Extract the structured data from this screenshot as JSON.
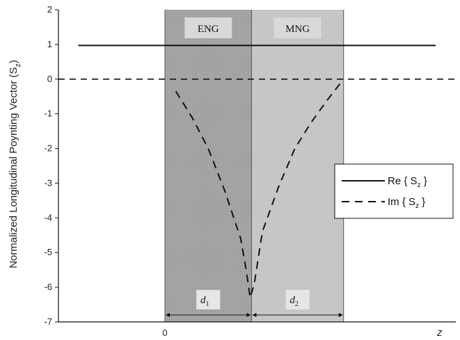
{
  "chart_data": {
    "type": "line",
    "title": "",
    "xlabel": "z",
    "ylabel": "Normalized Longitudinal Poynting Vector (S",
    "ylabel_sub": "z",
    "ylabel_close": ")",
    "ylim": [
      -7,
      2
    ],
    "yticks": [
      2,
      1,
      0,
      -1,
      -2,
      -3,
      -4,
      -5,
      -6,
      -7
    ],
    "xlim": [
      -0.32,
      1.0
    ],
    "xticks": [
      {
        "value": 0,
        "label": "0"
      }
    ],
    "grid": false,
    "regions": [
      {
        "name": "ENG",
        "x_start": 0,
        "x_end": 0.32,
        "span_label": "d",
        "span_sub": "1",
        "color": "#a9a9a9"
      },
      {
        "name": "MNG",
        "x_start": 0.32,
        "x_end": 0.66,
        "span_label": "d",
        "span_sub": "2",
        "color": "#c4c4c4"
      }
    ],
    "series": [
      {
        "name": "Re { S",
        "name_sub": "z",
        "name_close": " }",
        "style": "solid",
        "x": [
          -0.32,
          1.0
        ],
        "y": [
          0.97,
          0.97
        ]
      },
      {
        "name": "Im { S",
        "name_sub": "z",
        "name_close": " }",
        "style": "dashed",
        "x": [
          0.04,
          0.1,
          0.16,
          0.22,
          0.28,
          0.3,
          0.315,
          0.33,
          0.36,
          0.42,
          0.48,
          0.54,
          0.6,
          0.65
        ],
        "y": [
          -0.35,
          -1.1,
          -2.0,
          -3.2,
          -4.6,
          -5.5,
          -6.3,
          -5.9,
          -4.4,
          -3.1,
          -2.0,
          -1.25,
          -0.6,
          -0.1
        ]
      }
    ],
    "zero_line": {
      "y": 0,
      "style": "dashed"
    },
    "legend": "center-right"
  }
}
